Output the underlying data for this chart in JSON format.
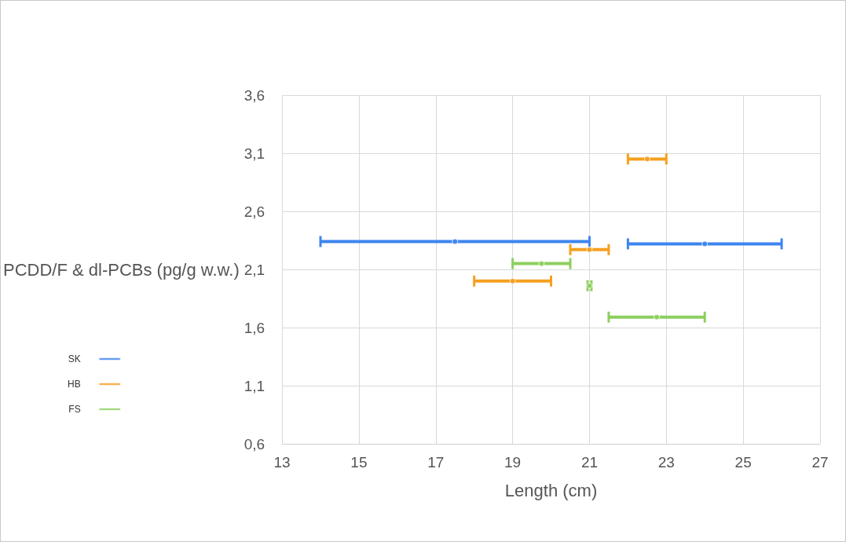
{
  "chart_data": {
    "type": "scatter",
    "xlabel": "Length (cm)",
    "ylabel": "PCDD/F & dl-PCBs (pg/g w.w.)",
    "xlim": [
      13,
      27
    ],
    "xticks": [
      13,
      15,
      17,
      19,
      21,
      23,
      25,
      27
    ],
    "ylim": [
      0.6,
      3.6
    ],
    "yticks": [
      {
        "value": 0.6,
        "label": "0,6"
      },
      {
        "value": 1.1,
        "label": "1,1"
      },
      {
        "value": 1.6,
        "label": "1,6"
      },
      {
        "value": 2.1,
        "label": "2,1"
      },
      {
        "value": 2.6,
        "label": "2,6"
      },
      {
        "value": 3.1,
        "label": "3,1"
      },
      {
        "value": 3.6,
        "label": "3,6"
      }
    ],
    "grid": true,
    "legend": "left",
    "marker": "none",
    "series": [
      {
        "name": "SK",
        "color": "#3d85f0",
        "x": [
          17.5,
          24
        ],
        "values": [
          2.34,
          2.32
        ],
        "xerrors": [
          [
            14,
            21
          ],
          [
            22,
            26
          ]
        ]
      },
      {
        "name": "HB",
        "color": "#f5a01f",
        "x": [
          22.5,
          21,
          19
        ],
        "values": [
          3.05,
          2.27,
          2.0
        ],
        "xerrors": [
          [
            22,
            23
          ],
          [
            20.5,
            21.5
          ],
          [
            18,
            20
          ]
        ]
      },
      {
        "name": "FS",
        "color": "#8dcf5f",
        "x": [
          19.75,
          21,
          22.75
        ],
        "values": [
          2.15,
          1.96,
          1.69
        ],
        "xerrors": [
          [
            19,
            20.5
          ],
          [
            20.95,
            21.05
          ],
          [
            21.5,
            24
          ]
        ]
      }
    ]
  }
}
